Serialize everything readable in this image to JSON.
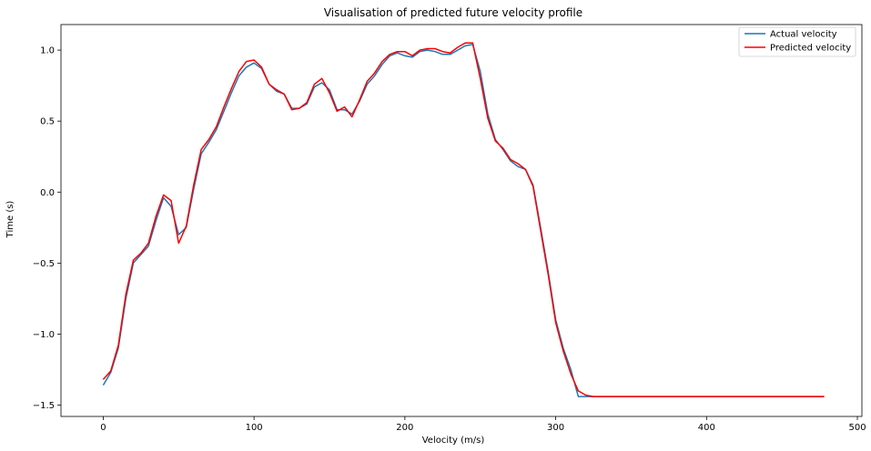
{
  "chart_data": {
    "type": "line",
    "title": "Visualisation of predicted future velocity profile",
    "xlabel": "Velocity (m/s)",
    "ylabel": "Time (s)",
    "xlim": [
      -28,
      503
    ],
    "ylim": [
      -1.58,
      1.18
    ],
    "xticks": [
      0,
      100,
      200,
      300,
      400,
      500
    ],
    "yticks": [
      -1.5,
      -1.0,
      -0.5,
      0.0,
      0.5,
      1.0
    ],
    "xtick_labels": [
      "0",
      "100",
      "200",
      "300",
      "400",
      "500"
    ],
    "ytick_labels": [
      "−1.5",
      "−1.0",
      "−0.5",
      "0.0",
      "0.5",
      "1.0"
    ],
    "grid": false,
    "legend": {
      "position": "top-right",
      "entries": [
        "Actual velocity",
        "Predicted velocity"
      ]
    },
    "series": [
      {
        "name": "Actual velocity",
        "color": "#1f77b4",
        "x": [
          0,
          5,
          10,
          15,
          20,
          25,
          30,
          35,
          40,
          45,
          50,
          55,
          60,
          65,
          70,
          75,
          80,
          85,
          90,
          95,
          100,
          105,
          110,
          115,
          120,
          125,
          130,
          135,
          140,
          145,
          150,
          155,
          160,
          165,
          170,
          175,
          180,
          185,
          190,
          195,
          200,
          205,
          210,
          215,
          220,
          225,
          230,
          235,
          240,
          245,
          250,
          255,
          260,
          265,
          270,
          275,
          280,
          285,
          290,
          295,
          300,
          305,
          310,
          315,
          320,
          325,
          330,
          340,
          360,
          400,
          440,
          478
        ],
        "y": [
          -1.36,
          -1.27,
          -1.1,
          -0.75,
          -0.5,
          -0.44,
          -0.38,
          -0.2,
          -0.04,
          -0.1,
          -0.3,
          -0.25,
          0.02,
          0.27,
          0.35,
          0.44,
          0.57,
          0.7,
          0.82,
          0.88,
          0.91,
          0.87,
          0.76,
          0.71,
          0.69,
          0.59,
          0.59,
          0.62,
          0.74,
          0.77,
          0.72,
          0.58,
          0.58,
          0.55,
          0.64,
          0.76,
          0.82,
          0.9,
          0.96,
          0.98,
          0.96,
          0.95,
          0.99,
          1.0,
          0.99,
          0.97,
          0.97,
          1.0,
          1.03,
          1.04,
          0.85,
          0.55,
          0.37,
          0.3,
          0.22,
          0.18,
          0.16,
          0.05,
          -0.25,
          -0.56,
          -0.9,
          -1.1,
          -1.25,
          -1.44,
          -1.44,
          -1.44,
          -1.44,
          -1.44,
          -1.44,
          -1.44,
          -1.44,
          -1.44
        ]
      },
      {
        "name": "Predicted velocity",
        "color": "#ff0000",
        "x": [
          0,
          5,
          10,
          15,
          20,
          25,
          30,
          35,
          40,
          45,
          50,
          55,
          60,
          65,
          70,
          75,
          80,
          85,
          90,
          95,
          100,
          105,
          110,
          115,
          120,
          125,
          130,
          135,
          140,
          145,
          150,
          155,
          160,
          165,
          170,
          175,
          180,
          185,
          190,
          195,
          200,
          205,
          210,
          215,
          220,
          225,
          230,
          235,
          240,
          245,
          250,
          255,
          260,
          265,
          270,
          275,
          280,
          285,
          290,
          295,
          300,
          305,
          310,
          315,
          320,
          325,
          330,
          340,
          360,
          400,
          440,
          478
        ],
        "y": [
          -1.32,
          -1.26,
          -1.08,
          -0.72,
          -0.48,
          -0.43,
          -0.36,
          -0.17,
          -0.02,
          -0.06,
          -0.36,
          -0.24,
          0.05,
          0.3,
          0.37,
          0.46,
          0.6,
          0.73,
          0.85,
          0.92,
          0.93,
          0.88,
          0.76,
          0.72,
          0.69,
          0.58,
          0.59,
          0.63,
          0.76,
          0.8,
          0.7,
          0.57,
          0.6,
          0.53,
          0.65,
          0.78,
          0.84,
          0.92,
          0.97,
          0.99,
          0.99,
          0.96,
          1.0,
          1.01,
          1.01,
          0.99,
          0.98,
          1.02,
          1.05,
          1.05,
          0.8,
          0.52,
          0.36,
          0.31,
          0.23,
          0.2,
          0.16,
          0.04,
          -0.27,
          -0.58,
          -0.92,
          -1.12,
          -1.28,
          -1.4,
          -1.43,
          -1.44,
          -1.44,
          -1.44,
          -1.44,
          -1.44,
          -1.44,
          -1.44
        ]
      }
    ]
  }
}
